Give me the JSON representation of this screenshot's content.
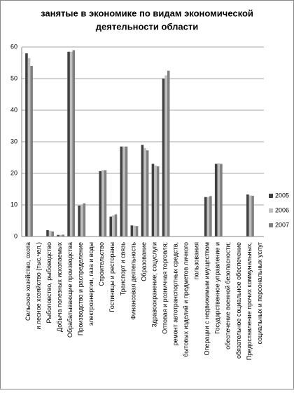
{
  "chart_data": {
    "type": "bar",
    "title": [
      "занятые в экономике по видам экономической",
      "деятельности области"
    ],
    "categories": [
      [
        "Сельское хозяйство, охота",
        "и лесное хозяйство (тыс.чел.)"
      ],
      [
        "Рыболовство, рыбоводство"
      ],
      [
        "Добыча полезных ископаемых"
      ],
      [
        "Обрабатывающие производства"
      ],
      [
        "Производство и распределение",
        "электроэнергии, газа и воды"
      ],
      [
        "Строительство"
      ],
      [
        "Гостиницы и рестораны"
      ],
      [
        "Транспорт и связь"
      ],
      [
        "Финансовая деятельность"
      ],
      [
        "Образование"
      ],
      [
        "Здравоохранение; соцуслуги"
      ],
      [
        "Оптовая и розничная торговля;",
        "ремонт автотранспортных средств,",
        "бытовых изделий и предметов личного",
        "пользования"
      ],
      [
        "Операции с недвижимым имуществом"
      ],
      [
        "Государственное управление и",
        "обеспечение военной безопасности;",
        "обязательное социальное обеспечение"
      ],
      [
        "Предоставление прочих коммунальных,",
        "социальных и персональных услуг"
      ]
    ],
    "series": [
      {
        "name": "2005",
        "color": "#404040",
        "values": [
          58,
          2,
          0.5,
          58.5,
          9.8,
          20.7,
          6.3,
          28.5,
          3.5,
          29,
          23,
          50,
          12.5,
          23,
          13.3
        ]
      },
      {
        "name": "2006",
        "color": "#bfbfbf",
        "values": [
          56.5,
          1.8,
          0.5,
          58.5,
          10,
          21,
          6.7,
          28.5,
          3.4,
          28,
          22.5,
          51,
          12.5,
          23.2,
          13
        ]
      },
      {
        "name": "2007",
        "color": "#808080",
        "values": [
          54,
          1.6,
          0.6,
          59,
          10.5,
          21,
          7,
          28.5,
          3.3,
          27.3,
          22.2,
          52.5,
          12.8,
          23,
          12.9
        ]
      }
    ],
    "ylim": [
      0,
      60
    ],
    "yticks": [
      0,
      10,
      20,
      30,
      40,
      50,
      60
    ],
    "grid": true,
    "legend": "right"
  }
}
